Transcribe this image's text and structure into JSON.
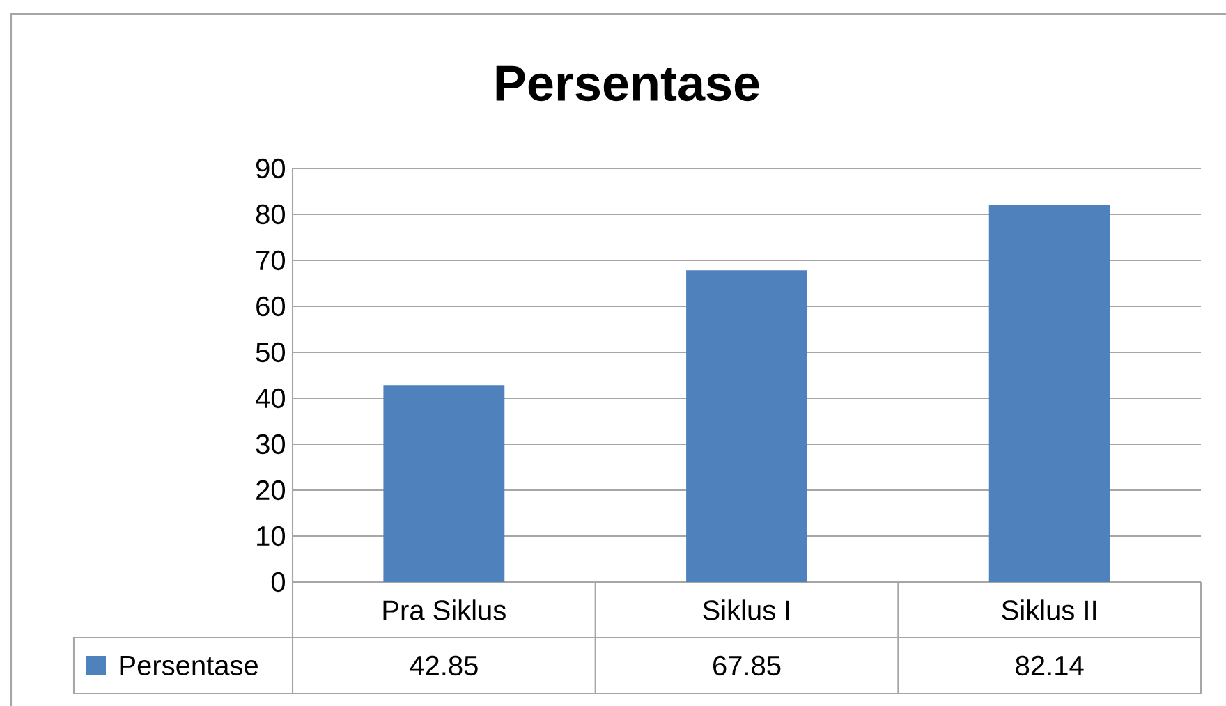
{
  "chart_data": {
    "type": "bar",
    "title": "Persentase",
    "categories": [
      "Pra Siklus",
      "Siklus I",
      "Siklus II"
    ],
    "series": [
      {
        "name": "Persentase",
        "color": "#4f81bd",
        "values": [
          42.85,
          67.85,
          82.14
        ]
      }
    ],
    "ylim": [
      0,
      90
    ],
    "yticks": [
      0,
      10,
      20,
      30,
      40,
      50,
      60,
      70,
      80,
      90
    ],
    "grid": "y",
    "data_labels": true
  }
}
